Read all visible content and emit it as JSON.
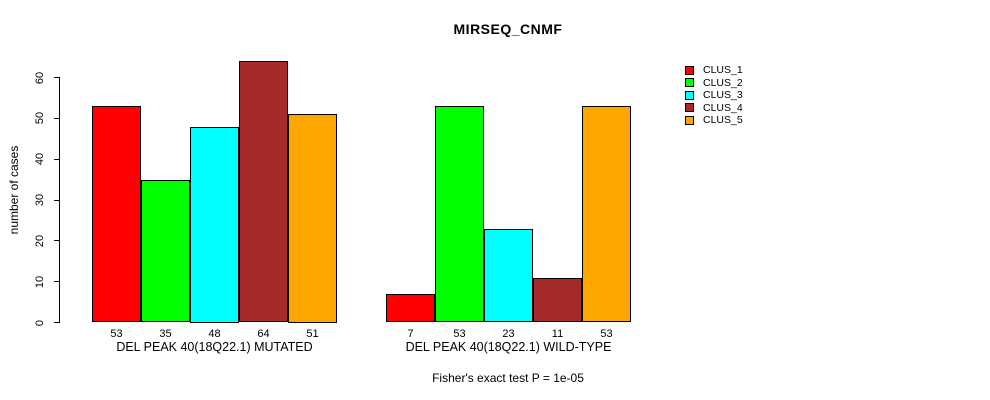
{
  "page": {
    "background_color": "#ffffff",
    "text_color": "#000000"
  },
  "chart_data": {
    "type": "bar",
    "title": "MIRSEQ_CNMF",
    "ylabel": "number of cases",
    "xlabel": "",
    "ylim": [
      0,
      60
    ],
    "yticks": [
      0,
      10,
      20,
      30,
      40,
      50,
      60
    ],
    "grid": false,
    "legend_position": "right",
    "bar_border_color": "#000000",
    "series": [
      {
        "name": "CLUS_1",
        "color": "#FF0000"
      },
      {
        "name": "CLUS_2",
        "color": "#00FF00"
      },
      {
        "name": "CLUS_3",
        "color": "#00FFFF"
      },
      {
        "name": "CLUS_4",
        "color": "#A52A2A"
      },
      {
        "name": "CLUS_5",
        "color": "#FFA500"
      }
    ],
    "groups": [
      {
        "label": "DEL PEAK 40(18Q22.1) MUTATED",
        "values": [
          53,
          35,
          48,
          64,
          51
        ]
      },
      {
        "label": "DEL PEAK 40(18Q22.1) WILD-TYPE",
        "values": [
          7,
          53,
          23,
          11,
          53
        ]
      }
    ],
    "footnote": "Fisher's exact test P = 1e-05"
  }
}
